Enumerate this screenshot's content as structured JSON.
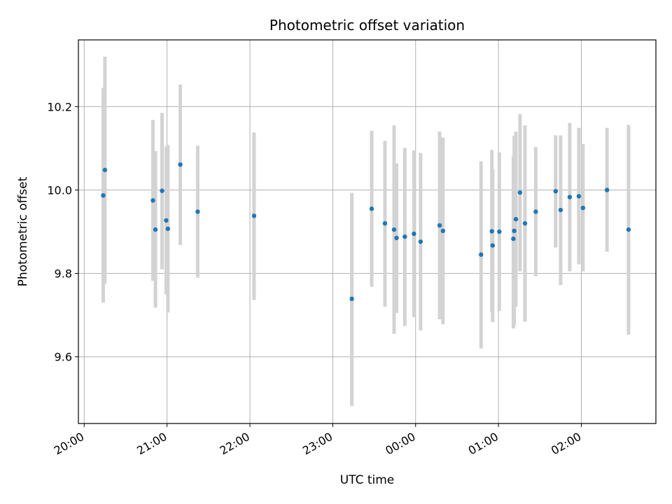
{
  "chart_data": {
    "type": "scatter",
    "title": "Photometric offset variation",
    "xlabel": "UTC time",
    "ylabel": "Photometric offset",
    "x_unit": "hours (UTC, continuing past midnight)",
    "xlim": [
      19.93,
      26.9
    ],
    "ylim": [
      9.44,
      10.36
    ],
    "x_ticks": [
      {
        "value": 20,
        "label": "20:00"
      },
      {
        "value": 21,
        "label": "21:00"
      },
      {
        "value": 22,
        "label": "22:00"
      },
      {
        "value": 23,
        "label": "23:00"
      },
      {
        "value": 24,
        "label": "00:00"
      },
      {
        "value": 25,
        "label": "01:00"
      },
      {
        "value": 26,
        "label": "02:00"
      }
    ],
    "y_ticks": [
      {
        "value": 9.6,
        "label": "9.6"
      },
      {
        "value": 9.8,
        "label": "9.8"
      },
      {
        "value": 10.0,
        "label": "10.0"
      },
      {
        "value": 10.2,
        "label": "10.2"
      }
    ],
    "grid": true,
    "marker_color": "#1f77b4",
    "errorbar_color": "#d3d3d3",
    "points": [
      {
        "x": 20.23,
        "y": 9.987,
        "lo": 9.73,
        "hi": 10.245
      },
      {
        "x": 20.25,
        "y": 10.048,
        "lo": 9.775,
        "hi": 10.32
      },
      {
        "x": 20.83,
        "y": 9.975,
        "lo": 9.782,
        "hi": 10.168
      },
      {
        "x": 20.86,
        "y": 9.905,
        "lo": 9.718,
        "hi": 10.093
      },
      {
        "x": 20.94,
        "y": 9.998,
        "lo": 9.81,
        "hi": 10.185
      },
      {
        "x": 20.99,
        "y": 9.927,
        "lo": 9.75,
        "hi": 10.104
      },
      {
        "x": 21.01,
        "y": 9.907,
        "lo": 9.706,
        "hi": 10.108
      },
      {
        "x": 21.16,
        "y": 10.061,
        "lo": 9.868,
        "hi": 10.253
      },
      {
        "x": 21.37,
        "y": 9.948,
        "lo": 9.79,
        "hi": 10.106
      },
      {
        "x": 22.05,
        "y": 9.938,
        "lo": 9.736,
        "hi": 10.138
      },
      {
        "x": 23.23,
        "y": 9.739,
        "lo": 9.482,
        "hi": 9.993
      },
      {
        "x": 23.47,
        "y": 9.955,
        "lo": 9.768,
        "hi": 10.142
      },
      {
        "x": 23.63,
        "y": 9.92,
        "lo": 9.72,
        "hi": 10.118
      },
      {
        "x": 23.74,
        "y": 9.905,
        "lo": 9.655,
        "hi": 10.155
      },
      {
        "x": 23.77,
        "y": 9.885,
        "lo": 9.705,
        "hi": 10.064
      },
      {
        "x": 23.87,
        "y": 9.888,
        "lo": 9.674,
        "hi": 10.101
      },
      {
        "x": 23.98,
        "y": 9.895,
        "lo": 9.695,
        "hi": 10.095
      },
      {
        "x": 24.06,
        "y": 9.876,
        "lo": 9.663,
        "hi": 10.089
      },
      {
        "x": 24.29,
        "y": 9.915,
        "lo": 9.69,
        "hi": 10.14
      },
      {
        "x": 24.33,
        "y": 9.902,
        "lo": 9.678,
        "hi": 10.126
      },
      {
        "x": 24.79,
        "y": 9.845,
        "lo": 9.62,
        "hi": 10.069
      },
      {
        "x": 24.92,
        "y": 9.901,
        "lo": 9.708,
        "hi": 10.096
      },
      {
        "x": 24.93,
        "y": 9.867,
        "lo": 9.683,
        "hi": 10.05
      },
      {
        "x": 25.01,
        "y": 9.9,
        "lo": 9.71,
        "hi": 10.09
      },
      {
        "x": 25.18,
        "y": 9.883,
        "lo": 9.668,
        "hi": 10.08
      },
      {
        "x": 25.19,
        "y": 9.902,
        "lo": 9.676,
        "hi": 10.13
      },
      {
        "x": 25.21,
        "y": 9.93,
        "lo": 9.72,
        "hi": 10.14
      },
      {
        "x": 25.26,
        "y": 9.994,
        "lo": 9.805,
        "hi": 10.182
      },
      {
        "x": 25.32,
        "y": 9.92,
        "lo": 9.684,
        "hi": 10.155
      },
      {
        "x": 25.45,
        "y": 9.948,
        "lo": 9.793,
        "hi": 10.103
      },
      {
        "x": 25.69,
        "y": 9.997,
        "lo": 9.862,
        "hi": 10.131
      },
      {
        "x": 25.75,
        "y": 9.952,
        "lo": 9.772,
        "hi": 10.131
      },
      {
        "x": 25.86,
        "y": 9.983,
        "lo": 9.805,
        "hi": 10.161
      },
      {
        "x": 25.97,
        "y": 9.985,
        "lo": 9.822,
        "hi": 10.149
      },
      {
        "x": 26.02,
        "y": 9.957,
        "lo": 9.805,
        "hi": 10.11
      },
      {
        "x": 26.31,
        "y": 10.0,
        "lo": 9.852,
        "hi": 10.149
      },
      {
        "x": 26.57,
        "y": 9.905,
        "lo": 9.653,
        "hi": 10.156
      }
    ]
  }
}
